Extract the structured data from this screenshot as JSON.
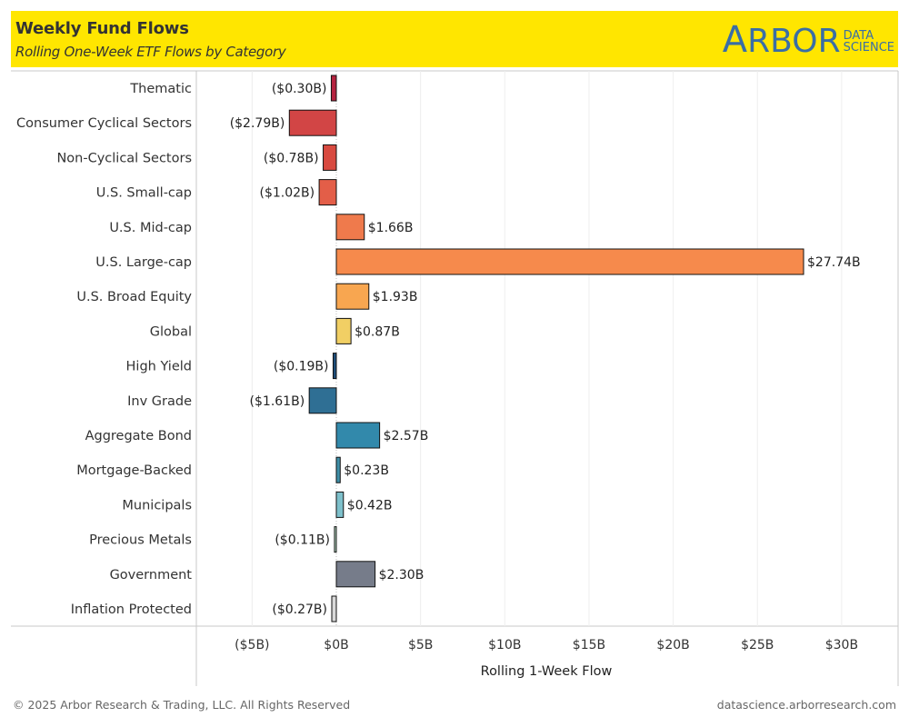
{
  "header": {
    "title": "Weekly Fund Flows",
    "subtitle": "Rolling One-Week ETF Flows by Category",
    "background_color": "#ffe600",
    "logo": {
      "main_first": "A",
      "main_rest": "RBOR",
      "sub_line1": "DATA",
      "sub_line2": "SCIENCE",
      "color": "#3a6ea5"
    }
  },
  "footer": {
    "copyright": "© 2025 Arbor Research & Trading, LLC. All Rights Reserved",
    "website": "datascience.arborresearch.com"
  },
  "chart_data": {
    "type": "bar",
    "orientation": "horizontal",
    "title": "Weekly Fund Flows",
    "subtitle": "Rolling One-Week ETF Flows by Category",
    "xlabel": "Rolling 1-Week Flow",
    "ylabel": "",
    "units": "$B",
    "xlim": [
      -8,
      33
    ],
    "x_ticks": [
      -5,
      0,
      5,
      10,
      15,
      20,
      25,
      30
    ],
    "x_tick_labels": [
      "($5B)",
      "$0B",
      "$5B",
      "$10B",
      "$15B",
      "$20B",
      "$25B",
      "$30B"
    ],
    "grid": "vertical",
    "legend": "none",
    "categories": [
      "Thematic",
      "Consumer Cyclical Sectors",
      "Non-Cyclical Sectors",
      "U.S. Small-cap",
      "U.S. Mid-cap",
      "U.S. Large-cap",
      "U.S. Broad Equity",
      "Global",
      "High Yield",
      "Inv Grade",
      "Aggregate Bond",
      "Mortgage-Backed",
      "Municipals",
      "Precious Metals",
      "Government",
      "Inflation Protected"
    ],
    "values": [
      -0.3,
      -2.79,
      -0.78,
      -1.02,
      1.66,
      27.74,
      1.93,
      0.87,
      -0.19,
      -1.61,
      2.57,
      0.23,
      0.42,
      -0.11,
      2.3,
      -0.27
    ],
    "value_labels": [
      "($0.30B)",
      "($2.79B)",
      "($0.78B)",
      "($1.02B)",
      "$1.66B",
      "$27.74B",
      "$1.93B",
      "$0.87B",
      "($0.19B)",
      "($1.61B)",
      "$2.57B",
      "$0.23B",
      "$0.42B",
      "($0.11B)",
      "$2.30B",
      "($0.27B)"
    ],
    "colors": [
      "#b5233f",
      "#d24545",
      "#d84a40",
      "#e35e48",
      "#ef7a4c",
      "#f68a4c",
      "#f8a650",
      "#f1cf64",
      "#1f4e7a",
      "#2f6f94",
      "#3289ab",
      "#3f8fa8",
      "#7ec0cb",
      "#b9dfc6",
      "#767c8a",
      "#d9d9d9"
    ]
  }
}
